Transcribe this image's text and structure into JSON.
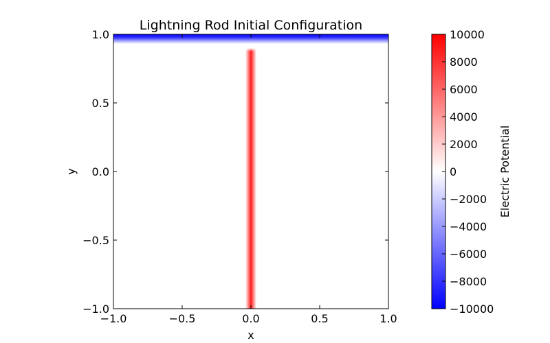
{
  "chart_data": {
    "type": "heatmap",
    "title": "Lightning Rod Initial Configuration",
    "xlabel": "x",
    "ylabel": "y",
    "xlim": [
      -1.0,
      1.0
    ],
    "ylim": [
      -1.0,
      1.0
    ],
    "x_ticks": [
      -1.0,
      -0.5,
      0.0,
      0.5,
      1.0
    ],
    "x_tick_labels": [
      "−1.0",
      "−0.5",
      "0.0",
      "0.5",
      "1.0"
    ],
    "y_ticks": [
      -1.0,
      -0.5,
      0.0,
      0.5,
      1.0
    ],
    "y_tick_labels": [
      "−1.0",
      "−0.5",
      "0.0",
      "0.5",
      "1.0"
    ],
    "grid": false,
    "colormap": "bwr",
    "colormap_colors": [
      "#0000ff",
      "#ffffff",
      "#ff0000"
    ],
    "colorbar": {
      "label": "Electric Potential",
      "range": [
        -10000,
        10000
      ],
      "ticks": [
        10000,
        8000,
        6000,
        4000,
        2000,
        0,
        -2000,
        -4000,
        -6000,
        -8000,
        -10000
      ],
      "tick_labels": [
        "10000",
        "8000",
        "6000",
        "4000",
        "2000",
        "0",
        "−2000",
        "−4000",
        "−6000",
        "−8000",
        "−10000"
      ]
    },
    "regions": [
      {
        "name": "cloud",
        "value": -10000,
        "x_range": [
          -1.0,
          1.0
        ],
        "y_range": [
          0.93,
          1.0
        ]
      },
      {
        "name": "rod",
        "value": 10000,
        "x_range": [
          -0.04,
          0.04
        ],
        "y_range": [
          -1.0,
          0.9
        ]
      }
    ]
  }
}
